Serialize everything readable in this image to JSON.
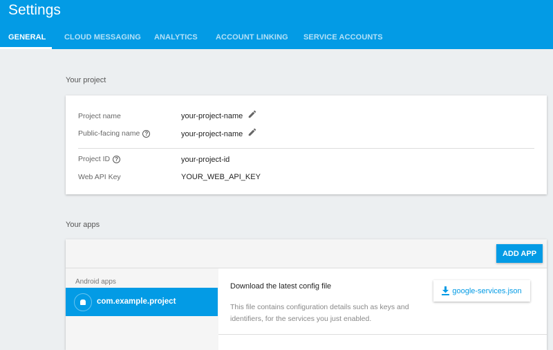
{
  "header": {
    "title": "Settings",
    "tabs": [
      {
        "label": "GENERAL",
        "active": true
      },
      {
        "label": "CLOUD MESSAGING"
      },
      {
        "label": "ANALYTICS"
      },
      {
        "label": "ACCOUNT LINKING"
      },
      {
        "label": "SERVICE ACCOUNTS"
      }
    ]
  },
  "project": {
    "section_title": "Your project",
    "rows": [
      {
        "label": "Project name",
        "value": "your-project-name"
      },
      {
        "label": "Public-facing name",
        "value": "your-project-name"
      },
      {
        "label": "Project ID",
        "value": "your-project-id"
      },
      {
        "label": "Web API Key",
        "value": "YOUR_WEB_API_KEY"
      }
    ],
    "help_glyph": "?"
  },
  "apps": {
    "section_title": "Your apps",
    "add_app_label": "ADD APP",
    "platform_label": "Android apps",
    "selected_app": "com.example.project",
    "config": {
      "title": "Download the latest config file",
      "description_line1": "This file contains configuration details such as keys and",
      "description_line2": "identifiers, for the services you just enabled.",
      "download_label": "google-services.json"
    }
  },
  "colors": {
    "accent": "#039be5",
    "background": "#eceff1"
  }
}
